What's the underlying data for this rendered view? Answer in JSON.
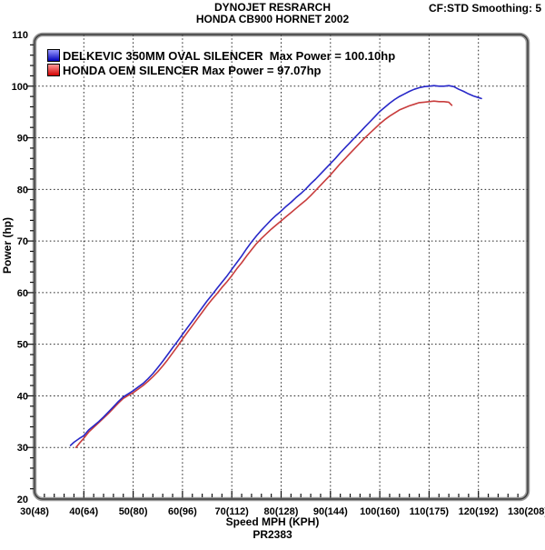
{
  "header": {
    "title_line1": "DYNOJET RESRARCH",
    "title_line2": "HONDA CB900 HORNET 2002",
    "smoothing": "CF:STD Smoothing: 5"
  },
  "footer": {
    "xlabel": "Speed MPH (KPH)",
    "run_id": "PR2383"
  },
  "legend": {
    "items": [
      {
        "label": "DELKEVIC 350MM OVAL SILENCER  Max Power = 100.10hp",
        "swatch_top": "#9a9aff",
        "swatch_bottom": "#0000bb"
      },
      {
        "label": "HONDA OEM SILENCER Max Power = 97.07hp",
        "swatch_top": "#ff9a9a",
        "swatch_bottom": "#d20000"
      }
    ]
  },
  "chart_data": {
    "type": "line",
    "title": "DYNOJET RESRARCH - HONDA CB900 HORNET 2002",
    "xlabel": "Speed MPH (KPH)",
    "ylabel": "Power (hp)",
    "xlim": [
      30,
      130
    ],
    "ylim": [
      20,
      110
    ],
    "grid": "dashed, every 10 units both axes",
    "legend_position": "top-left inside plot",
    "x_ticks": [
      {
        "value": 30,
        "label": "30(48)"
      },
      {
        "value": 40,
        "label": "40(64)"
      },
      {
        "value": 50,
        "label": "50(80)"
      },
      {
        "value": 60,
        "label": "60(96)"
      },
      {
        "value": 70,
        "label": "70(112)"
      },
      {
        "value": 80,
        "label": "80(128)"
      },
      {
        "value": 90,
        "label": "90(144)"
      },
      {
        "value": 100,
        "label": "100(160)"
      },
      {
        "value": 110,
        "label": "110(175)"
      },
      {
        "value": 120,
        "label": "120(192)"
      },
      {
        "value": 130,
        "label": "130(208)"
      }
    ],
    "y_ticks": [
      {
        "value": 20,
        "label": "20"
      },
      {
        "value": 30,
        "label": "30"
      },
      {
        "value": 40,
        "label": "40"
      },
      {
        "value": 50,
        "label": "50"
      },
      {
        "value": 60,
        "label": "60"
      },
      {
        "value": 70,
        "label": "70"
      },
      {
        "value": 80,
        "label": "80"
      },
      {
        "value": 90,
        "label": "90"
      },
      {
        "value": 100,
        "label": "100"
      },
      {
        "value": 110,
        "label": "110"
      }
    ],
    "minor_tick_step": 2,
    "series": [
      {
        "name": "HONDA OEM SILENCER",
        "max_power_hp": 97.07,
        "color": "#c83c3c",
        "points": [
          [
            38.4,
            30.0
          ],
          [
            39,
            30.7
          ],
          [
            40,
            31.8
          ],
          [
            41,
            33.0
          ],
          [
            42,
            33.9
          ],
          [
            43,
            34.8
          ],
          [
            44,
            35.7
          ],
          [
            45,
            36.6
          ],
          [
            46,
            37.6
          ],
          [
            47,
            38.6
          ],
          [
            48,
            39.5
          ],
          [
            49,
            40.1
          ],
          [
            50,
            40.6
          ],
          [
            51,
            41.3
          ],
          [
            52,
            42.0
          ],
          [
            53,
            42.8
          ],
          [
            54,
            43.7
          ],
          [
            55,
            44.7
          ],
          [
            56,
            45.8
          ],
          [
            57,
            47.0
          ],
          [
            58,
            48.3
          ],
          [
            59,
            49.6
          ],
          [
            60,
            51.0
          ],
          [
            61,
            52.3
          ],
          [
            62,
            53.6
          ],
          [
            63,
            54.9
          ],
          [
            64,
            56.2
          ],
          [
            65,
            57.5
          ],
          [
            66,
            58.7
          ],
          [
            67,
            59.8
          ],
          [
            68,
            61.0
          ],
          [
            69,
            62.1
          ],
          [
            70,
            63.3
          ],
          [
            71,
            64.6
          ],
          [
            72,
            65.8
          ],
          [
            73,
            67.1
          ],
          [
            74,
            68.3
          ],
          [
            75,
            69.5
          ],
          [
            76,
            70.5
          ],
          [
            77,
            71.4
          ],
          [
            78,
            72.3
          ],
          [
            79,
            73.1
          ],
          [
            80,
            73.9
          ],
          [
            81,
            74.7
          ],
          [
            82,
            75.5
          ],
          [
            83,
            76.3
          ],
          [
            84,
            77.1
          ],
          [
            85,
            77.9
          ],
          [
            86,
            78.8
          ],
          [
            87,
            79.8
          ],
          [
            88,
            80.8
          ],
          [
            89,
            81.8
          ],
          [
            90,
            82.8
          ],
          [
            91,
            83.9
          ],
          [
            92,
            85.0
          ],
          [
            93,
            86.0
          ],
          [
            94,
            87.0
          ],
          [
            95,
            88.0
          ],
          [
            96,
            89.0
          ],
          [
            97,
            90.0
          ],
          [
            98,
            90.9
          ],
          [
            99,
            91.8
          ],
          [
            100,
            92.7
          ],
          [
            101,
            93.5
          ],
          [
            102,
            94.2
          ],
          [
            103,
            94.8
          ],
          [
            104,
            95.4
          ],
          [
            105,
            95.8
          ],
          [
            106,
            96.2
          ],
          [
            107,
            96.5
          ],
          [
            108,
            96.8
          ],
          [
            109,
            96.9
          ],
          [
            110,
            97.0
          ],
          [
            111,
            97.1
          ],
          [
            112,
            97.0
          ],
          [
            113,
            97.0
          ],
          [
            114,
            96.9
          ],
          [
            114.6,
            96.3
          ]
        ]
      },
      {
        "name": "DELKEVIC 350MM OVAL SILENCER",
        "max_power_hp": 100.1,
        "color": "#2828c8",
        "points": [
          [
            37.3,
            30.4
          ],
          [
            38,
            31.0
          ],
          [
            39,
            31.7
          ],
          [
            40,
            32.3
          ],
          [
            41,
            33.4
          ],
          [
            42,
            34.2
          ],
          [
            43,
            35.0
          ],
          [
            44,
            35.9
          ],
          [
            45,
            36.9
          ],
          [
            46,
            37.9
          ],
          [
            47,
            38.9
          ],
          [
            48,
            39.8
          ],
          [
            49,
            40.4
          ],
          [
            50,
            41.0
          ],
          [
            51,
            41.7
          ],
          [
            52,
            42.4
          ],
          [
            53,
            43.3
          ],
          [
            54,
            44.3
          ],
          [
            55,
            45.5
          ],
          [
            56,
            46.7
          ],
          [
            57,
            48.0
          ],
          [
            58,
            49.3
          ],
          [
            59,
            50.6
          ],
          [
            60,
            51.9
          ],
          [
            61,
            53.2
          ],
          [
            62,
            54.5
          ],
          [
            63,
            55.8
          ],
          [
            64,
            57.1
          ],
          [
            65,
            58.4
          ],
          [
            66,
            59.6
          ],
          [
            67,
            60.8
          ],
          [
            68,
            62.0
          ],
          [
            69,
            63.2
          ],
          [
            70,
            64.5
          ],
          [
            71,
            65.8
          ],
          [
            72,
            67.1
          ],
          [
            73,
            68.5
          ],
          [
            74,
            69.8
          ],
          [
            75,
            71.0
          ],
          [
            76,
            72.1
          ],
          [
            77,
            73.1
          ],
          [
            78,
            74.1
          ],
          [
            79,
            75.0
          ],
          [
            80,
            75.8
          ],
          [
            81,
            76.7
          ],
          [
            82,
            77.5
          ],
          [
            83,
            78.4
          ],
          [
            84,
            79.2
          ],
          [
            85,
            80.1
          ],
          [
            86,
            81.1
          ],
          [
            87,
            82.0
          ],
          [
            88,
            83.0
          ],
          [
            89,
            84.0
          ],
          [
            90,
            85.0
          ],
          [
            91,
            86.0
          ],
          [
            92,
            87.1
          ],
          [
            93,
            88.1
          ],
          [
            94,
            89.1
          ],
          [
            95,
            90.1
          ],
          [
            96,
            91.1
          ],
          [
            97,
            92.1
          ],
          [
            98,
            93.1
          ],
          [
            99,
            94.1
          ],
          [
            100,
            95.1
          ],
          [
            101,
            95.9
          ],
          [
            102,
            96.7
          ],
          [
            103,
            97.4
          ],
          [
            104,
            98.0
          ],
          [
            105,
            98.5
          ],
          [
            106,
            99.0
          ],
          [
            107,
            99.4
          ],
          [
            108,
            99.7
          ],
          [
            109,
            99.9
          ],
          [
            110,
            100.0
          ],
          [
            111,
            100.1
          ],
          [
            112,
            100.0
          ],
          [
            113,
            100.0
          ],
          [
            114,
            100.1
          ],
          [
            115,
            99.9
          ],
          [
            116,
            99.4
          ],
          [
            117,
            99.0
          ],
          [
            118,
            98.5
          ],
          [
            119,
            98.1
          ],
          [
            120,
            97.8
          ],
          [
            120.6,
            97.6
          ]
        ]
      }
    ]
  }
}
